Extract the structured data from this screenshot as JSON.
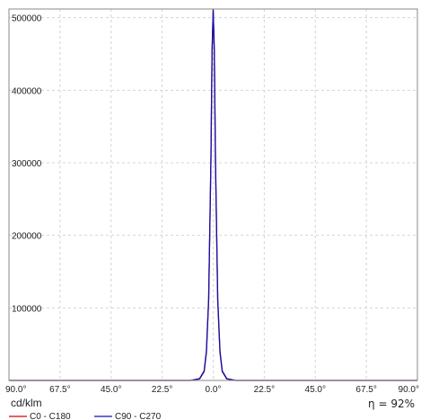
{
  "chart_data": {
    "type": "line",
    "title": "",
    "xlabel": "",
    "ylabel": "",
    "xlim": [
      -90,
      90
    ],
    "ylim": [
      0,
      512000
    ],
    "x_tick_labels": [
      "90.0°",
      "67.5°",
      "45.0°",
      "22.5°",
      "0.0°",
      "22.5°",
      "45.0°",
      "67.5°",
      "90.0°"
    ],
    "y_tick_labels": [
      "100000",
      "200000",
      "300000",
      "400000",
      "500000"
    ],
    "y_ticks": [
      100000,
      200000,
      300000,
      400000,
      500000
    ],
    "unit_label": "cd/klm",
    "efficiency_label": "η = 92%",
    "grid": true,
    "legend_position": "bottom-left",
    "series": [
      {
        "name": "C0 - C180",
        "color": "#d40000",
        "x": [
          -90,
          -10,
          -6,
          -4,
          -3,
          -2,
          -1,
          -0.5,
          0,
          0.5,
          1,
          2,
          3,
          4,
          6,
          10,
          90
        ],
        "y": [
          0,
          0,
          2000,
          12000,
          38000,
          110000,
          300000,
          450000,
          512000,
          450000,
          300000,
          110000,
          38000,
          12000,
          2000,
          0,
          0
        ]
      },
      {
        "name": "C90 - C270",
        "color": "#1010b0",
        "x": [
          -90,
          -10,
          -6,
          -4,
          -3,
          -2,
          -1,
          -0.5,
          0,
          0.5,
          1,
          2,
          3,
          4,
          6,
          10,
          90
        ],
        "y": [
          0,
          0,
          2500,
          13000,
          40000,
          112000,
          305000,
          455000,
          510000,
          455000,
          305000,
          112000,
          40000,
          13000,
          2500,
          0,
          0
        ]
      }
    ]
  }
}
